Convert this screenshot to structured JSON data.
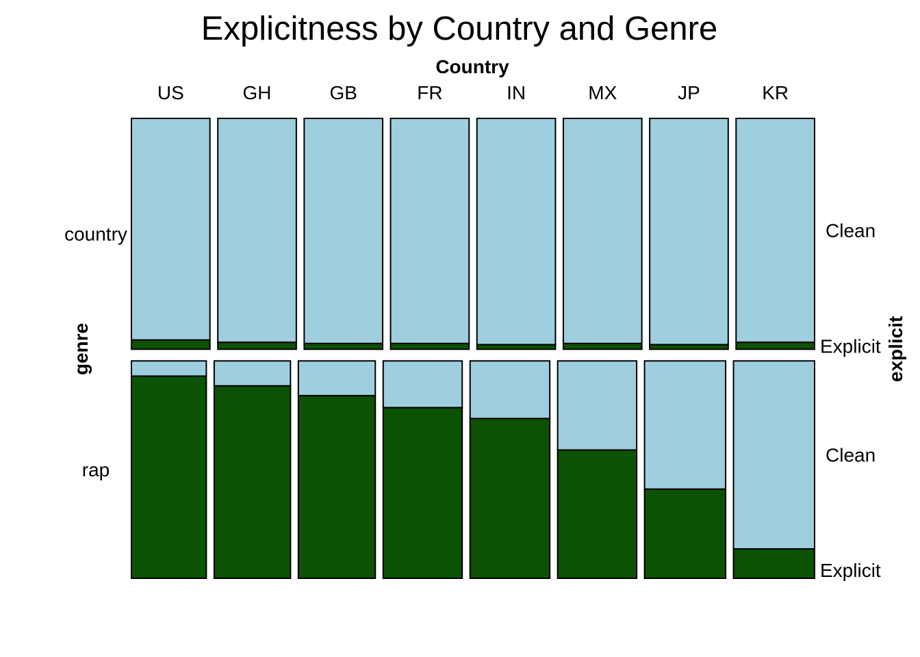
{
  "chart_data": {
    "type": "mosaic",
    "title": "Explicitness by Country and Genre",
    "x_variable": "Country",
    "y_variable": "genre",
    "fill_variable": "explicit",
    "countries": [
      "US",
      "GH",
      "GB",
      "FR",
      "IN",
      "MX",
      "JP",
      "KR"
    ],
    "genres": [
      "country",
      "rap"
    ],
    "explicit_levels": [
      "Clean",
      "Explicit"
    ],
    "genre_share": {
      "country": 0.515,
      "rap": 0.485
    },
    "rap_country_width_share": [
      0.109,
      0.111,
      0.112,
      0.115,
      0.116,
      0.115,
      0.118,
      0.118
    ],
    "explicit_share": {
      "country": [
        0.04,
        0.03,
        0.025,
        0.025,
        0.02,
        0.025,
        0.02,
        0.03
      ],
      "rap": [
        0.93,
        0.885,
        0.84,
        0.785,
        0.735,
        0.59,
        0.41,
        0.135
      ]
    },
    "colors": {
      "Clean": "#9FCEDF",
      "Explicit": "#0C5203"
    }
  }
}
